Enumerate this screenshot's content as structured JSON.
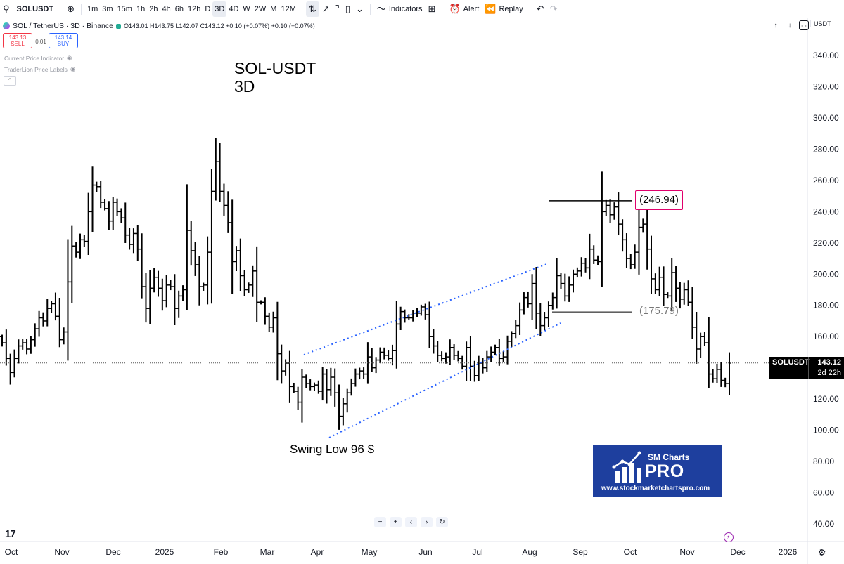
{
  "toolbar": {
    "symbol": "SOLUSDT",
    "add_symbol_icon": "plus-circle-icon",
    "intervals": [
      "1m",
      "3m",
      "15m",
      "1h",
      "2h",
      "4h",
      "6h",
      "12h",
      "D",
      "3D",
      "4D",
      "W",
      "2W",
      "M",
      "12M"
    ],
    "active_interval": "3D",
    "indicators_label": "Indicators",
    "alert_label": "Alert",
    "replay_label": "Replay"
  },
  "legend": {
    "pair": "SOL / TetherUS · 3D · Binance",
    "ohlc": "O143.01 H143.75 L142.07 C143.12 +0.10 (+0.07%) +0.10 (+0.07%)",
    "sell_price": "143.13",
    "sell_label": "SELL",
    "spread": "0.01",
    "buy_price": "143.14",
    "buy_label": "BUY",
    "indicator_1": "Current Price Indicator",
    "indicator_2": "TraderLion Price Labels"
  },
  "price_scale": {
    "currency": "USDT",
    "labels": [
      "340.00",
      "320.00",
      "300.00",
      "280.00",
      "260.00",
      "240.00",
      "220.00",
      "200.00",
      "180.00",
      "160.00",
      "140.00",
      "120.00",
      "100.00",
      "80.00",
      "60.00",
      "40.00"
    ]
  },
  "time_scale": {
    "labels": [
      "Oct",
      "Nov",
      "Dec",
      "2025",
      "Feb",
      "Mar",
      "Apr",
      "May",
      "Jun",
      "Jul",
      "Aug",
      "Sep",
      "Oct",
      "Nov",
      "Dec",
      "2026"
    ]
  },
  "current_price": {
    "symbol": "SOLUSDT",
    "price": "143.12",
    "countdown": "2d 22h",
    "value": 143.12
  },
  "annotations": {
    "title_line1": "SOL-USDT",
    "title_line2": "3D",
    "swing_low": "Swing Low 96 $",
    "resistance": "(246.94)",
    "support": "(175.79)"
  },
  "watermark": {
    "line1": "SM Charts",
    "line2": "PRO",
    "line3": "www.stockmarketchartspro.com"
  },
  "colors": {
    "bars": "#000000",
    "channel": "#2962ff",
    "highlight": "#e0006c",
    "logo_bg": "#1e3f9e"
  },
  "chart_data": {
    "type": "ohlc",
    "interval": "3D",
    "ylim": [
      40,
      340
    ],
    "time_ticks": [
      "Oct",
      "Nov",
      "Dec",
      "2025",
      "Feb",
      "Mar",
      "Apr",
      "May",
      "Jun",
      "Jul",
      "Aug",
      "Sep",
      "Oct",
      "Nov",
      "Dec",
      "2026"
    ],
    "closes": [
      156,
      146,
      137,
      146,
      154,
      156,
      152,
      158,
      165,
      172,
      170,
      178,
      181,
      173,
      158,
      163,
      195,
      218,
      214,
      222,
      221,
      240,
      257,
      256,
      246,
      242,
      234,
      246,
      240,
      236,
      225,
      219,
      226,
      216,
      192,
      178,
      191,
      198,
      191,
      183,
      193,
      192,
      178,
      186,
      190,
      228,
      215,
      206,
      192,
      193,
      214,
      253,
      272,
      253,
      244,
      233,
      208,
      215,
      199,
      190,
      193,
      202,
      182,
      182,
      173,
      166,
      172,
      149,
      138,
      143,
      128,
      125,
      118,
      134,
      130,
      128,
      129,
      125,
      136,
      126,
      134,
      124,
      109,
      117,
      124,
      130,
      136,
      138,
      136,
      147,
      140,
      145,
      150,
      148,
      146,
      151,
      168,
      176,
      172,
      172,
      175,
      175,
      179,
      174,
      160,
      154,
      148,
      146,
      147,
      153,
      148,
      146,
      141,
      153,
      141,
      135,
      143,
      140,
      147,
      150,
      153,
      146,
      147,
      157,
      162,
      167,
      177,
      185,
      181,
      194,
      175,
      167,
      172,
      180,
      185,
      199,
      194,
      186,
      193,
      200,
      202,
      207,
      204,
      216,
      209,
      208,
      240,
      244,
      238,
      243,
      232,
      222,
      210,
      206,
      214,
      230,
      232,
      216,
      197,
      190,
      198,
      187,
      186,
      201,
      191,
      184,
      190,
      182,
      166,
      152,
      160,
      156,
      136,
      133,
      139,
      132,
      130,
      143
    ]
  }
}
